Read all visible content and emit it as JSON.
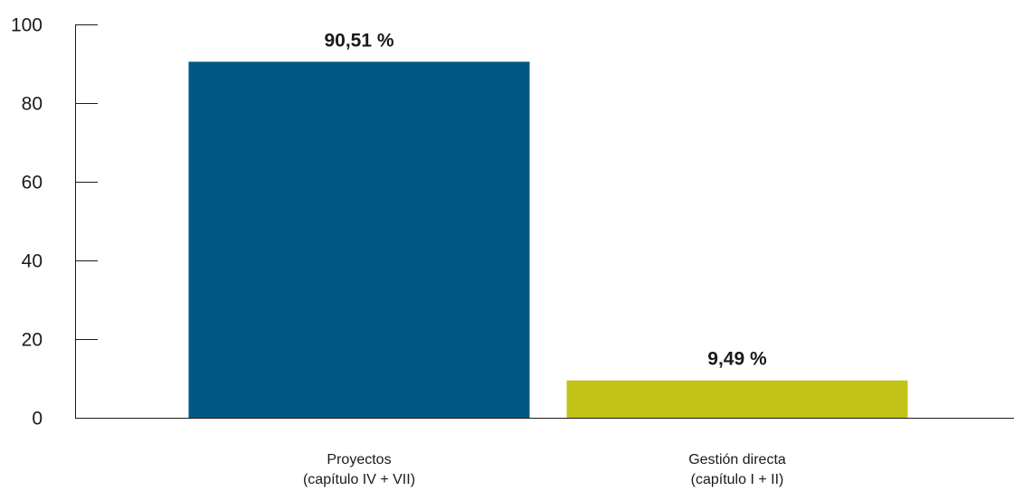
{
  "chart_data": {
    "type": "bar",
    "categories": [
      [
        "Proyectos",
        "(capítulo IV + VII)"
      ],
      [
        "Gestión directa",
        "(capítulo I + II)"
      ]
    ],
    "values": [
      90.51,
      9.49
    ],
    "data_labels": [
      "90,51 %",
      "9,49 %"
    ],
    "colors": [
      "#005884",
      "#c3c218"
    ],
    "yticks": [
      0,
      20,
      40,
      60,
      80,
      100
    ],
    "ylim": [
      0,
      100
    ],
    "title": "",
    "xlabel": "",
    "ylabel": "",
    "grid": false,
    "legend": "none"
  }
}
